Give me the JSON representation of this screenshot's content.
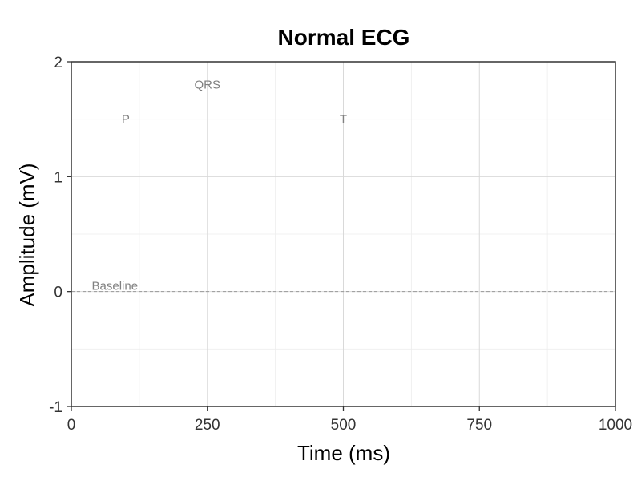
{
  "chart_data": {
    "type": "line",
    "title": "Normal ECG",
    "xlabel": "Time (ms)",
    "ylabel": "Amplitude (mV)",
    "xlim": [
      0,
      1000
    ],
    "ylim": [
      -1,
      2
    ],
    "x_ticks": [
      0,
      250,
      500,
      750,
      1000
    ],
    "y_ticks": [
      -1,
      0,
      1,
      2
    ],
    "x_tick_labels": [
      "0",
      "250",
      "500",
      "750",
      "1000"
    ],
    "y_tick_labels": [
      "-1",
      "0",
      "1",
      "2"
    ],
    "grid": true,
    "series": [],
    "reference_lines": [
      {
        "axis": "y",
        "value": 0,
        "style": "dashed",
        "color": "#999999"
      }
    ],
    "annotations": [
      {
        "text": "P",
        "x": 100,
        "y": 1.5
      },
      {
        "text": "QRS",
        "x": 250,
        "y": 1.8
      },
      {
        "text": "T",
        "x": 500,
        "y": 1.5
      },
      {
        "text": "Baseline",
        "x": 80,
        "y": 0.05
      }
    ],
    "colors": {
      "annotation": "#808080",
      "grid": "#d9d9d9",
      "axis": "#333333"
    }
  }
}
